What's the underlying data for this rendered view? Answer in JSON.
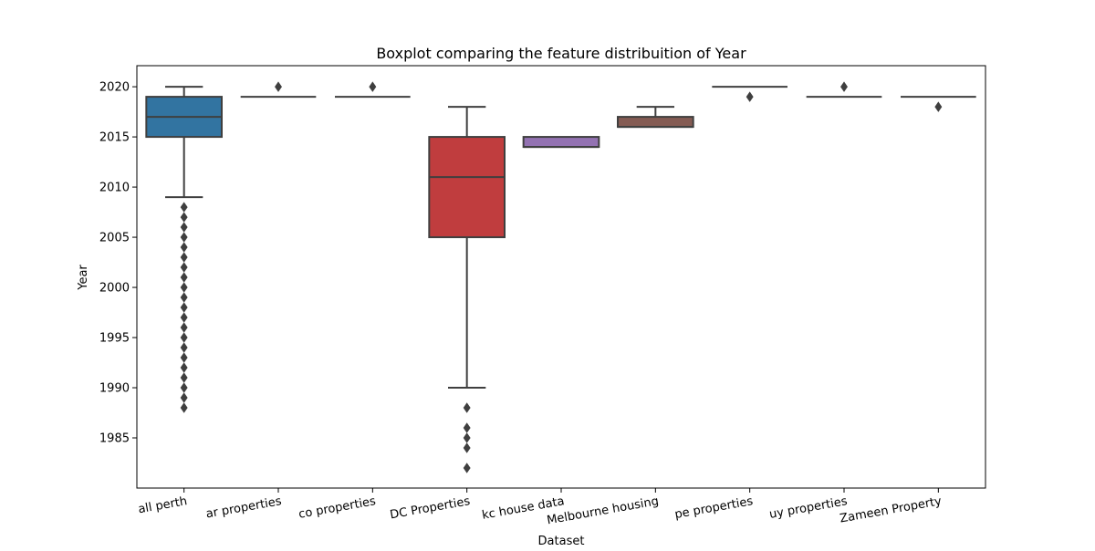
{
  "chart_data": {
    "type": "boxplot",
    "title": "Boxplot comparing the feature distribuition of Year",
    "xlabel": "Dataset",
    "ylabel": "Year",
    "ylim": [
      1980.0,
      2022.1
    ],
    "yticks": [
      1985,
      1990,
      1995,
      2000,
      2005,
      2010,
      2015,
      2020
    ],
    "grid": false,
    "categories": [
      "all perth",
      "ar properties",
      "co properties",
      "DC Properties",
      "kc house data",
      "Melbourne housing",
      "pe properties",
      "uy properties",
      "Zameen Property"
    ],
    "colors": [
      "#3274a1",
      "#e1812c",
      "#3a923a",
      "#c03d3e",
      "#9372b2",
      "#845b53",
      "#d684bd",
      "#7f7f7f",
      "#a9aa35"
    ],
    "boxes": [
      {
        "category": "all perth",
        "q1": 2015,
        "median": 2017,
        "q3": 2019,
        "whisker_low": 2009,
        "whisker_high": 2020,
        "outliers": [
          1988,
          1989,
          1990,
          1991,
          1992,
          1993,
          1994,
          1995,
          1996,
          1997,
          1998,
          1999,
          2000,
          2001,
          2002,
          2003,
          2004,
          2005,
          2006,
          2007,
          2008
        ]
      },
      {
        "category": "ar properties",
        "q1": 2019,
        "median": 2019,
        "q3": 2019,
        "whisker_low": 2019,
        "whisker_high": 2019,
        "outliers": [
          2020
        ]
      },
      {
        "category": "co properties",
        "q1": 2019,
        "median": 2019,
        "q3": 2019,
        "whisker_low": 2019,
        "whisker_high": 2019,
        "outliers": [
          2020
        ]
      },
      {
        "category": "DC Properties",
        "q1": 2005,
        "median": 2011,
        "q3": 2015,
        "whisker_low": 1990,
        "whisker_high": 2018,
        "outliers": [
          1982,
          1984,
          1985,
          1986,
          1988
        ]
      },
      {
        "category": "kc house data",
        "q1": 2014,
        "median": 2014,
        "q3": 2015,
        "whisker_low": 2014,
        "whisker_high": 2015,
        "outliers": []
      },
      {
        "category": "Melbourne housing",
        "q1": 2016,
        "median": 2016,
        "q3": 2017,
        "whisker_low": 2016,
        "whisker_high": 2018,
        "outliers": []
      },
      {
        "category": "pe properties",
        "q1": 2020,
        "median": 2020,
        "q3": 2020,
        "whisker_low": 2020,
        "whisker_high": 2020,
        "outliers": [
          2019
        ]
      },
      {
        "category": "uy properties",
        "q1": 2019,
        "median": 2019,
        "q3": 2019,
        "whisker_low": 2019,
        "whisker_high": 2019,
        "outliers": [
          2020
        ]
      },
      {
        "category": "Zameen Property",
        "q1": 2019,
        "median": 2019,
        "q3": 2019,
        "whisker_low": 2019,
        "whisker_high": 2019,
        "outliers": [
          2018
        ]
      }
    ]
  }
}
